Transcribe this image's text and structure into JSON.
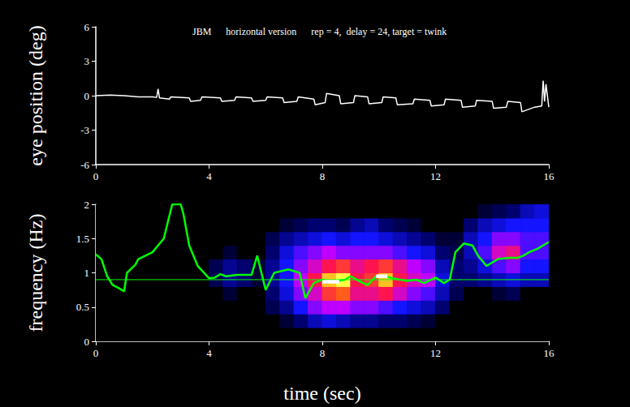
{
  "chart_data": [
    {
      "type": "line",
      "title": "JBM      horizontal version      rep = 4,  delay = 24, target = twink",
      "ylabel": "eye position (deg)",
      "color": "#ffffff",
      "grid": false,
      "xlim": [
        0,
        16
      ],
      "xticks": [
        0,
        4,
        8,
        12,
        16
      ],
      "ylim": [
        -6,
        6
      ],
      "yticks": [
        -6,
        -3,
        0,
        3,
        6
      ],
      "x": [
        0,
        0.5,
        1,
        1.5,
        2,
        2.15,
        2.2,
        2.25,
        2.6,
        2.65,
        3.3,
        3.35,
        3.7,
        3.75,
        4.4,
        4.45,
        4.9,
        4.95,
        5.5,
        5.55,
        6,
        6.05,
        6.6,
        6.65,
        7.1,
        7.15,
        7.7,
        7.75,
        8.1,
        8.15,
        8.6,
        8.65,
        9.1,
        9.15,
        9.6,
        9.65,
        10.1,
        10.15,
        10.6,
        10.65,
        11.2,
        11.25,
        11.8,
        11.85,
        12.3,
        12.35,
        12.9,
        12.95,
        13.4,
        13.45,
        14,
        14.05,
        14.5,
        14.55,
        15,
        15.05,
        15.5,
        15.75,
        15.8,
        15.85,
        15.9,
        16
      ],
      "values": [
        0,
        0.05,
        0,
        -0.1,
        -0.1,
        -0.15,
        0.6,
        -0.2,
        -0.3,
        -0.1,
        -0.2,
        -0.5,
        -0.4,
        -0.1,
        -0.2,
        -0.5,
        -0.4,
        -0.1,
        -0.2,
        -0.5,
        -0.4,
        -0.1,
        -0.2,
        -0.6,
        -0.5,
        -0.1,
        -0.3,
        -0.8,
        -0.6,
        0.2,
        0,
        -0.7,
        -0.6,
        0,
        -0.1,
        -0.7,
        -0.6,
        -0.1,
        -0.2,
        -0.8,
        -0.7,
        -0.3,
        -0.4,
        -0.9,
        -0.8,
        -0.3,
        -0.4,
        -1.0,
        -0.9,
        -0.4,
        -0.5,
        -1.1,
        -1.0,
        -0.5,
        -0.6,
        -1.4,
        -1.0,
        -0.9,
        1.3,
        -0.5,
        1.0,
        -1.0
      ]
    },
    {
      "type": "heatmap",
      "xlabel": "time (sec)",
      "ylabel": "frequency (Hz)",
      "grid": false,
      "xlim": [
        0,
        16
      ],
      "xticks": [
        0,
        4,
        8,
        12,
        16
      ],
      "ylim": [
        0,
        2
      ],
      "yticks": [
        0,
        0.5,
        1,
        1.5,
        2
      ],
      "heatmap": {
        "x_bins": [
          0,
          0.5,
          1,
          1.5,
          2,
          2.5,
          3,
          3.5,
          4,
          4.5,
          5,
          5.5,
          6,
          6.5,
          7,
          7.5,
          8,
          8.5,
          9,
          9.5,
          10,
          10.5,
          11,
          11.5,
          12,
          12.5,
          13,
          13.5,
          14,
          14.5,
          15,
          15.5,
          16
        ],
        "y_bins": [
          0,
          0.2,
          0.4,
          0.6,
          0.8,
          1.0,
          1.2,
          1.4,
          1.6,
          1.8,
          2.0
        ],
        "color_range": [
          0,
          1
        ],
        "cells": [
          [
            0,
            0,
            0,
            0,
            0,
            0,
            0,
            0,
            0,
            0,
            0,
            0,
            0,
            0,
            0,
            0,
            0,
            0,
            0,
            0,
            0,
            0,
            0,
            0,
            0,
            0,
            0,
            0,
            0,
            0,
            0,
            0
          ],
          [
            0,
            0,
            0,
            0,
            0,
            0,
            0,
            0,
            0,
            0,
            0,
            0,
            0,
            0.1,
            0.2,
            0.3,
            0.35,
            0.3,
            0.25,
            0.25,
            0.2,
            0.2,
            0.15,
            0.1,
            0,
            0,
            0,
            0,
            0,
            0,
            0,
            0
          ],
          [
            0,
            0,
            0,
            0,
            0,
            0,
            0,
            0,
            0,
            0,
            0,
            0,
            0.15,
            0.25,
            0.4,
            0.5,
            0.55,
            0.55,
            0.5,
            0.5,
            0.45,
            0.4,
            0.35,
            0.3,
            0.2,
            0,
            0,
            0,
            0,
            0,
            0,
            0
          ],
          [
            0,
            0,
            0,
            0,
            0,
            0,
            0,
            0,
            0,
            0.1,
            0,
            0,
            0.2,
            0.35,
            0.5,
            0.6,
            0.75,
            0.8,
            0.65,
            0.65,
            0.7,
            0.6,
            0.5,
            0.45,
            0.3,
            0.15,
            0,
            0,
            0.1,
            0.15,
            0,
            0
          ],
          [
            0,
            0,
            0,
            0,
            0,
            0,
            0,
            0,
            0.15,
            0.25,
            0.2,
            0.1,
            0.25,
            0.4,
            0.55,
            0.7,
            0.9,
            0.95,
            0.7,
            0.75,
            0.9,
            0.7,
            0.6,
            0.55,
            0.35,
            0.2,
            0.2,
            0.25,
            0.3,
            0.35,
            0.3,
            0.3
          ],
          [
            0,
            0,
            0,
            0,
            0,
            0,
            0,
            0,
            0.15,
            0.25,
            0.2,
            0.1,
            0.25,
            0.4,
            0.5,
            0.6,
            0.7,
            0.75,
            0.65,
            0.7,
            0.75,
            0.65,
            0.55,
            0.5,
            0.3,
            0.2,
            0.25,
            0.35,
            0.45,
            0.5,
            0.4,
            0.4
          ],
          [
            0,
            0,
            0,
            0,
            0,
            0,
            0,
            0,
            0,
            0.1,
            0,
            0,
            0.2,
            0.35,
            0.45,
            0.5,
            0.55,
            0.5,
            0.5,
            0.5,
            0.5,
            0.45,
            0.4,
            0.35,
            0.2,
            0.15,
            0.3,
            0.45,
            0.6,
            0.65,
            0.45,
            0.45
          ],
          [
            0,
            0,
            0,
            0,
            0,
            0,
            0,
            0,
            0,
            0,
            0,
            0,
            0.15,
            0.25,
            0.3,
            0.35,
            0.4,
            0.35,
            0.4,
            0.4,
            0.35,
            0.3,
            0.25,
            0.2,
            0.1,
            0.1,
            0.3,
            0.4,
            0.5,
            0.5,
            0.45,
            0.45
          ],
          [
            0,
            0,
            0,
            0,
            0,
            0,
            0,
            0,
            0,
            0,
            0,
            0,
            0,
            0.1,
            0.15,
            0.2,
            0.2,
            0.15,
            0.25,
            0.3,
            0.2,
            0.15,
            0.1,
            0,
            0,
            0,
            0.2,
            0.3,
            0.35,
            0.4,
            0.4,
            0.4
          ],
          [
            0,
            0,
            0,
            0,
            0,
            0,
            0,
            0,
            0,
            0,
            0,
            0,
            0,
            0,
            0,
            0,
            0,
            0,
            0,
            0,
            0,
            0,
            0,
            0,
            0,
            0,
            0,
            0.1,
            0.15,
            0.2,
            0.3,
            0.35
          ]
        ]
      },
      "series": [
        {
          "type": "line",
          "color": "#00ff00",
          "x": [
            0,
            0.2,
            0.4,
            0.6,
            0.8,
            1.0,
            1.1,
            1.4,
            1.5,
            2.0,
            2.4,
            2.7,
            3.0,
            3.1,
            3.3,
            3.6,
            4.0,
            4.2,
            4.4,
            4.6,
            5.0,
            5.5,
            5.7,
            6.0,
            6.3,
            6.8,
            7.2,
            7.4,
            7.7,
            8.0,
            8.4,
            8.8,
            9.0,
            9.3,
            9.6,
            9.9,
            10.2,
            10.5,
            11.0,
            11.3,
            11.6,
            12.0,
            12.3,
            12.5,
            12.7,
            13.0,
            13.3,
            13.5,
            13.8,
            14.2,
            14.6,
            14.9,
            15.1,
            15.3,
            15.6,
            16.0
          ],
          "values": [
            1.27,
            1.2,
            0.95,
            0.82,
            0.78,
            0.73,
            1.0,
            1.12,
            1.2,
            1.3,
            1.5,
            2.0,
            2.0,
            1.85,
            1.4,
            1.1,
            0.92,
            0.93,
            0.98,
            0.95,
            0.97,
            0.97,
            1.25,
            0.75,
            1.0,
            1.05,
            1.0,
            0.63,
            0.85,
            0.9,
            0.87,
            0.9,
            0.95,
            0.88,
            0.82,
            0.95,
            0.95,
            0.92,
            0.88,
            0.9,
            0.85,
            0.93,
            0.85,
            0.9,
            1.3,
            1.43,
            1.4,
            1.25,
            1.1,
            1.2,
            1.22,
            1.22,
            1.25,
            1.3,
            1.35,
            1.45
          ]
        },
        {
          "type": "line",
          "color": "#00ff00",
          "line_style": "thin",
          "x": [
            0,
            16
          ],
          "values": [
            0.9,
            0.9
          ]
        },
        {
          "type": "line",
          "color": "#ffffff",
          "line_style": "thick",
          "x": [
            8.0,
            8.6
          ],
          "values": [
            0.87,
            0.87
          ]
        },
        {
          "type": "line",
          "color": "#ffffff",
          "line_style": "thick",
          "x": [
            9.9,
            10.3
          ],
          "values": [
            0.95,
            0.95
          ]
        }
      ]
    }
  ]
}
